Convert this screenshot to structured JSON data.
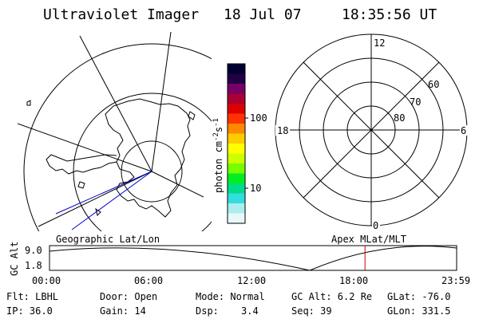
{
  "header": {
    "title": "Ultraviolet Imager",
    "date": "18 Jul 07",
    "time": "18:35:56 UT"
  },
  "colorbar": {
    "label_main": "photon cm",
    "label_sup1": "-2",
    "label_mid": "s",
    "label_sup2": "-1",
    "tick_100": "100",
    "tick_10": "10"
  },
  "polar_plot": {
    "mlt_12": "12",
    "mlt_18": "18",
    "mlt_6": "6",
    "mlt_0": "0",
    "lat_60": "60",
    "lat_70": "70",
    "lat_80": "80"
  },
  "labels": {
    "geographic": "Geographic Lat/Lon",
    "apex": "Apex MLat/MLT",
    "gc_alt_axis": "GC Alt",
    "y_top": "9.0",
    "y_bottom": "1.8"
  },
  "timeline": {
    "ticks": [
      "00:00",
      "06:00",
      "12:00",
      "18:00",
      "23:59"
    ],
    "marker_fraction": 0.7749,
    "marker_color": "#cc0000"
  },
  "footer": {
    "flt": "Flt: LBHL",
    "ip": "IP: 36.0",
    "door": "Door: Open",
    "gain": "Gain: 14",
    "mode": "Mode: Normal",
    "dsp_label": "Dsp:",
    "dsp_value": "3.4",
    "gc_alt": "GC Alt: 6.2 Re",
    "seq": "Seq: 39",
    "glat": "GLat: -76.0",
    "glon": "GLon: 331.5"
  },
  "colors": {
    "ink": "#000000",
    "coast": "#000000",
    "blue_track": "#0000cc",
    "bar_stops": [
      "#000033",
      "#220044",
      "#770066",
      "#aa0033",
      "#dd0000",
      "#ff3300",
      "#ff8800",
      "#ffcc00",
      "#ffff00",
      "#ccff00",
      "#77ff00",
      "#00ee22",
      "#00dd88",
      "#33dddd",
      "#aaeeee",
      "#e8f8f8"
    ]
  }
}
